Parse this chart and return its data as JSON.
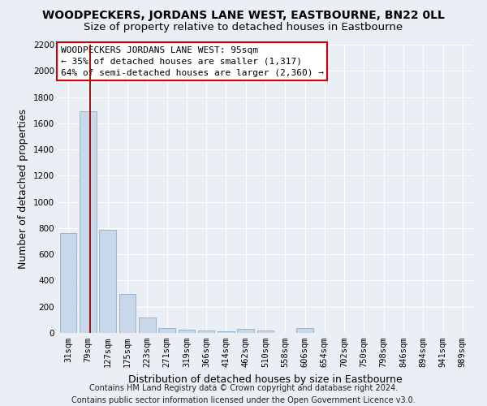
{
  "title": "WOODPECKERS, JORDANS LANE WEST, EASTBOURNE, BN22 0LL",
  "subtitle": "Size of property relative to detached houses in Eastbourne",
  "xlabel": "Distribution of detached houses by size in Eastbourne",
  "ylabel": "Number of detached properties",
  "footer_line1": "Contains HM Land Registry data © Crown copyright and database right 2024.",
  "footer_line2": "Contains public sector information licensed under the Open Government Licence v3.0.",
  "categories": [
    "31sqm",
    "79sqm",
    "127sqm",
    "175sqm",
    "223sqm",
    "271sqm",
    "319sqm",
    "366sqm",
    "414sqm",
    "462sqm",
    "510sqm",
    "558sqm",
    "606sqm",
    "654sqm",
    "702sqm",
    "750sqm",
    "798sqm",
    "846sqm",
    "894sqm",
    "941sqm",
    "989sqm"
  ],
  "values": [
    760,
    1690,
    790,
    295,
    115,
    40,
    25,
    20,
    15,
    30,
    20,
    0,
    40,
    0,
    0,
    0,
    0,
    0,
    0,
    0,
    0
  ],
  "bar_color": "#c8d8ea",
  "bar_edge_color": "#9ab4cc",
  "vline_position": 1.1,
  "vline_color": "#990000",
  "annotation_text": "WOODPECKERS JORDANS LANE WEST: 95sqm\n← 35% of detached houses are smaller (1,317)\n64% of semi-detached houses are larger (2,360) →",
  "annotation_box_facecolor": "#ffffff",
  "annotation_box_edgecolor": "#cc0000",
  "ylim": [
    0,
    2200
  ],
  "yticks": [
    0,
    200,
    400,
    600,
    800,
    1000,
    1200,
    1400,
    1600,
    1800,
    2000,
    2200
  ],
  "bg_color": "#eaeef5",
  "plot_bg_color": "#eaeef5",
  "grid_color": "#ffffff",
  "title_fontsize": 10,
  "subtitle_fontsize": 9.5,
  "ylabel_fontsize": 9,
  "xlabel_fontsize": 9,
  "tick_fontsize": 7.5,
  "annotation_fontsize": 8,
  "footer_fontsize": 7
}
